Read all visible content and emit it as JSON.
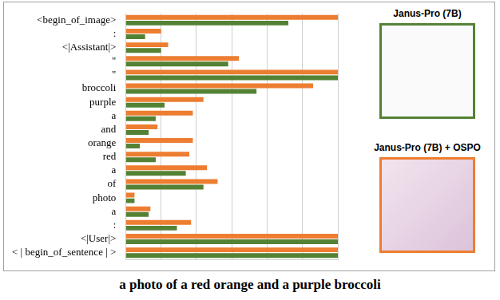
{
  "chart_data": {
    "type": "bar",
    "orientation": "horizontal",
    "categories": [
      "<begin_of_image>",
      ":",
      "<|Assistant|>",
      "\"",
      "\"",
      "broccoli",
      "purple",
      "a",
      "and",
      "orange",
      "red",
      "a",
      "of",
      "photo",
      "a",
      ":",
      "<|User|>",
      "< | begin_of_sentence | >"
    ],
    "series": [
      {
        "name": "Janus-Pro (7B) + OSPO",
        "color": "#ed7d31",
        "values": [
          6,
          1.0,
          1.2,
          3.2,
          6,
          5.3,
          2.2,
          1.9,
          0.9,
          1.9,
          1.8,
          2.3,
          2.6,
          0.25,
          0.7,
          1.85,
          6,
          6
        ]
      },
      {
        "name": "Janus-Pro (7B)",
        "color": "#548235",
        "values": [
          4.6,
          0.55,
          1.0,
          2.9,
          6,
          3.7,
          1.1,
          0.85,
          0.65,
          0.4,
          0.85,
          1.7,
          2.2,
          0.25,
          0.65,
          1.45,
          6,
          6
        ]
      }
    ],
    "xlim": [
      0,
      6
    ],
    "xticks": [
      0,
      1,
      2,
      3,
      4,
      5,
      6
    ],
    "grid": true,
    "tick_labels": "y"
  },
  "caption": "a photo of a red orange and a purple broccoli"
}
